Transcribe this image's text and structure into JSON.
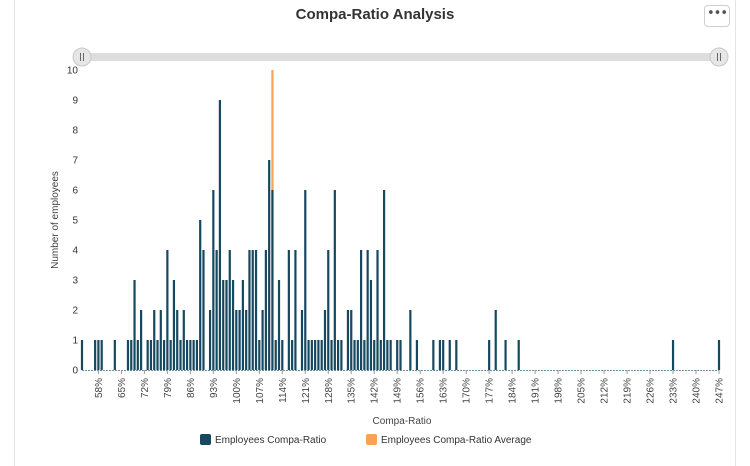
{
  "title": "Compa-Ratio Analysis",
  "menu_icon": "ellipsis-icon",
  "colors": {
    "series": "#16485f",
    "average": "#f7a256",
    "slider_track": "#dddddd",
    "slider_handle": "#c8c8c8"
  },
  "chart_data": {
    "type": "bar",
    "title": "Compa-Ratio Analysis",
    "xlabel": "Compa-Ratio",
    "ylabel": "Number of employees",
    "ylim": [
      0,
      10
    ],
    "yticks": [
      0,
      1,
      2,
      3,
      4,
      5,
      6,
      7,
      8,
      9,
      10
    ],
    "xlim": [
      53,
      247
    ],
    "xticks": [
      "58%",
      "65%",
      "72%",
      "79%",
      "86%",
      "93%",
      "100%",
      "107%",
      "114%",
      "121%",
      "128%",
      "135%",
      "142%",
      "149%",
      "156%",
      "163%",
      "170%",
      "177%",
      "184%",
      "191%",
      "198%",
      "205%",
      "212%",
      "219%",
      "226%",
      "233%",
      "240%",
      "247%"
    ],
    "grid": false,
    "legend": "bottom",
    "series": [
      {
        "name": "Employees Compa-Ratio",
        "x": [
          53,
          57,
          58,
          59,
          63,
          67,
          68,
          69,
          70,
          71,
          73,
          74,
          75,
          76,
          77,
          78,
          79,
          80,
          81,
          82,
          83,
          84,
          85,
          86,
          87,
          88,
          89,
          90,
          92,
          93,
          94,
          95,
          96,
          97,
          98,
          99,
          100,
          101,
          102,
          103,
          104,
          105,
          106,
          107,
          108,
          109,
          110,
          111,
          112,
          113,
          114,
          116,
          117,
          118,
          120,
          121,
          122,
          123,
          124,
          125,
          126,
          127,
          128,
          129,
          130,
          131,
          132,
          134,
          135,
          136,
          137,
          138,
          139,
          140,
          141,
          142,
          143,
          144,
          145,
          146,
          147,
          149,
          150,
          153,
          155,
          160,
          162,
          163,
          165,
          167,
          177,
          179,
          182,
          186,
          233,
          247
        ],
        "values": [
          1,
          1,
          1,
          1,
          1,
          1,
          1,
          3,
          1,
          2,
          1,
          1,
          2,
          1,
          2,
          1,
          4,
          1,
          3,
          2,
          1,
          2,
          1,
          1,
          1,
          1,
          5,
          4,
          2,
          6,
          4,
          9,
          3,
          3,
          4,
          3,
          2,
          2,
          3,
          2,
          4,
          4,
          4,
          1,
          2,
          4,
          7,
          6,
          1,
          3,
          1,
          4,
          1,
          4,
          2,
          6,
          1,
          1,
          1,
          1,
          1,
          2,
          4,
          1,
          6,
          1,
          1,
          2,
          2,
          1,
          1,
          4,
          1,
          4,
          3,
          1,
          4,
          1,
          6,
          1,
          1,
          1,
          1,
          2,
          1,
          1,
          1,
          1,
          1,
          1,
          1,
          2,
          1,
          1,
          1,
          1
        ]
      },
      {
        "name": "Employees Compa-Ratio Average",
        "x": [
          111
        ],
        "values": [
          10
        ]
      }
    ]
  }
}
